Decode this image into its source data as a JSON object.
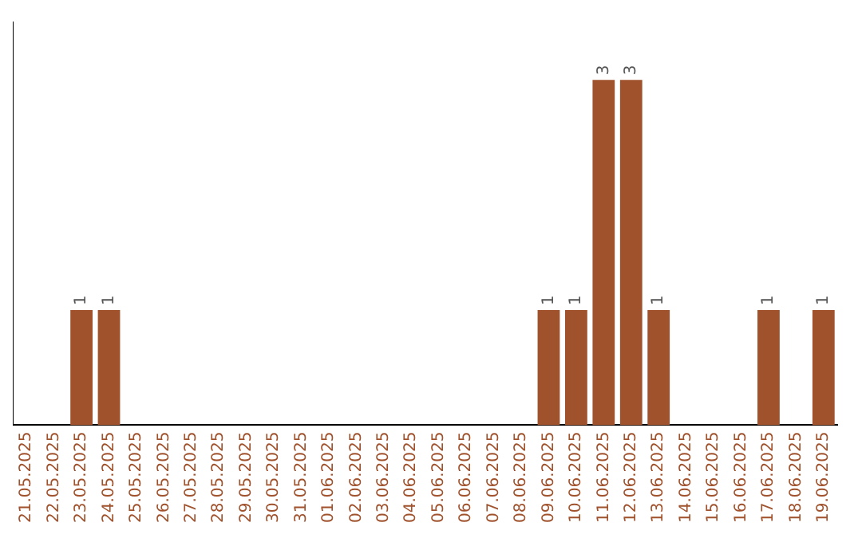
{
  "chart_data": {
    "type": "bar",
    "categories": [
      "21.05.2025",
      "22.05.2025",
      "23.05.2025",
      "24.05.2025",
      "25.05.2025",
      "26.05.2025",
      "27.05.2025",
      "28.05.2025",
      "29.05.2025",
      "30.05.2025",
      "31.05.2025",
      "01.06.2025",
      "02.06.2025",
      "03.06.2025",
      "04.06.2025",
      "05.06.2025",
      "06.06.2025",
      "07.06.2025",
      "08.06.2025",
      "09.06.2025",
      "10.06.2025",
      "11.06.2025",
      "12.06.2025",
      "13.06.2025",
      "14.06.2025",
      "15.06.2025",
      "16.06.2025",
      "17.06.2025",
      "18.06.2025",
      "19.06.2025"
    ],
    "values": [
      0,
      0,
      1,
      1,
      0,
      0,
      0,
      0,
      0,
      0,
      0,
      0,
      0,
      0,
      0,
      0,
      0,
      0,
      0,
      1,
      1,
      3,
      3,
      1,
      0,
      0,
      0,
      1,
      0,
      1
    ],
    "value_labels": [
      null,
      null,
      "1",
      "1",
      null,
      null,
      null,
      null,
      null,
      null,
      null,
      null,
      null,
      null,
      null,
      null,
      null,
      null,
      null,
      "1",
      "1",
      "3",
      "3",
      "1",
      null,
      null,
      null,
      "1",
      null,
      "1"
    ],
    "color": "#a0522d",
    "tick_labels": "x",
    "grid": false,
    "legend": false
  }
}
